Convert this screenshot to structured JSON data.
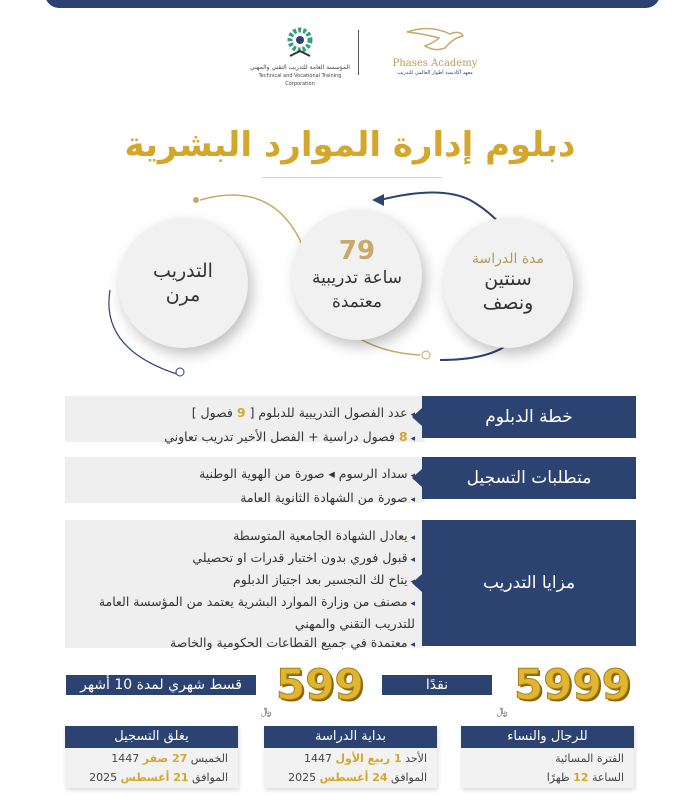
{
  "logos": {
    "tvtc_ar": "المؤسسة العامة للتدريب التقني والمهني",
    "tvtc_en": "Technical and Vocational Training Corporation",
    "academy_en": "Phases Academy",
    "academy_ar": "معهد أكاديمية أطوار العالمي للتدريب"
  },
  "title": "دبلوم إدارة الموارد البشرية",
  "circles": [
    {
      "label": "مدة الدراسة",
      "value": "سنتين ونصف"
    },
    {
      "number": "79",
      "value": "ساعة تدريبية معتمدة"
    },
    {
      "value": "التدريب مرن"
    }
  ],
  "sections": [
    {
      "label": "خطة الدبلوم",
      "items": [
        {
          "pre": "عدد الفصول التدريبية للدبلوم [ ",
          "hl": "9",
          "post": " فصول ]"
        },
        {
          "pre": "",
          "hl": "8",
          "post": " فصول دراسية + الفصل الأخير تدريب تعاوني"
        }
      ]
    },
    {
      "label": "متطلبات التسجيل",
      "items": [
        {
          "pre": "سداد الرسوم ◂ صورة من الهوية الوطنية",
          "hl": "",
          "post": ""
        },
        {
          "pre": "صورة من الشهادة الثانوية العامة",
          "hl": "",
          "post": ""
        }
      ]
    },
    {
      "label": "مزايا التدريب",
      "items": [
        {
          "pre": "يعادل الشهادة الجامعية المتوسطة"
        },
        {
          "pre": "قبول فوري بدون اختبار قدرات او تحصيلي"
        },
        {
          "pre": "يتاح لك التجسير بعد اجتياز الدبلوم"
        },
        {
          "pre": "مصنف من وزارة الموارد البشرية يعتمد من المؤسسة العامة للتدريب التقني والمهني"
        },
        {
          "pre": "معتمدة في جميع القطاعات الحكومية والخاصة"
        }
      ]
    }
  ],
  "pricing": {
    "cash_price": "5999",
    "cash_label": "نقدًا",
    "monthly_price": "599",
    "monthly_label": "قسط شهري لمدة 10 أشهر",
    "currency": "﷼"
  },
  "boxes": [
    {
      "title": "للرجال والنساء",
      "l1": {
        "pre": "الفترة المسائية",
        "hl": "",
        "post": ""
      },
      "l2": {
        "pre": "الساعة ",
        "hl": "12",
        "post": " ظهرًا"
      }
    },
    {
      "title": "بداية الدراسة",
      "l1": {
        "pre": "الأحد ",
        "hl": "1 ربيع الأول",
        "post": " 1447"
      },
      "l2": {
        "pre": "الموافق ",
        "hl": "24 أغسطس",
        "post": " 2025"
      }
    },
    {
      "title": "يغلق التسجيل",
      "l1": {
        "pre": "الخميس ",
        "hl": "27 صفر",
        "post": " 1447"
      },
      "l2": {
        "pre": "الموافق ",
        "hl": "21 أغسطس",
        "post": " 2025"
      }
    }
  ],
  "colors": {
    "navy": "#2c4372",
    "gold": "#d4a72c"
  }
}
